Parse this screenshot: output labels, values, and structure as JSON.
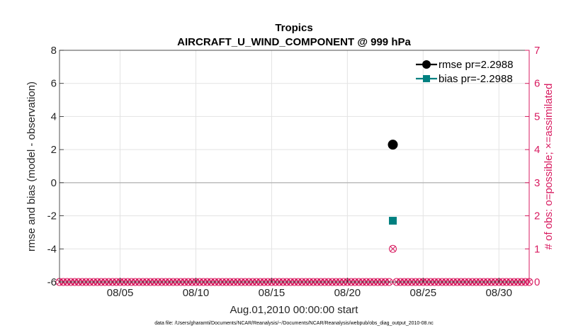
{
  "chart_data": {
    "type": "scatter",
    "title": "Tropics",
    "subtitle": "AIRCRAFT_U_WIND_COMPONENT @ 999 hPa",
    "xlabel": "Aug.01,2010 00:00:00 start",
    "ylabel": "rmse and bias (model - observation)",
    "y2label": "# of obs: o=possible; ×=assimilated",
    "footnote": "data file: /Users/gharamti/Documents/NCAR/Reanalysis/~/Documents/NCAR/Reanalysis/webpub/obs_diag_output_2010-08.nc",
    "xlim": [
      1.0,
      32.0
    ],
    "ylim": [
      -6,
      8
    ],
    "y2lim": [
      0,
      7
    ],
    "xticks": [
      5,
      10,
      15,
      20,
      25,
      30
    ],
    "xtick_labels": [
      "08/05",
      "08/10",
      "08/15",
      "08/20",
      "08/25",
      "08/30"
    ],
    "yticks": [
      -6,
      -4,
      -2,
      0,
      2,
      4,
      6,
      8
    ],
    "ytick_labels": [
      "-6",
      "-4",
      "-2",
      "0",
      "2",
      "4",
      "6",
      "8"
    ],
    "y2ticks": [
      0,
      1,
      2,
      3,
      4,
      5,
      6,
      7
    ],
    "y2tick_labels": [
      "0",
      "1",
      "2",
      "3",
      "4",
      "5",
      "6",
      "7"
    ],
    "grid": true,
    "zero_line": 0,
    "legend_position": "top-right",
    "series": [
      {
        "name": "rmse",
        "label": "rmse pr=2.2988",
        "color": "#000000",
        "marker": "circle",
        "x": [
          23.0
        ],
        "y": [
          2.2988
        ]
      },
      {
        "name": "bias",
        "label": "bias pr=-2.2988",
        "color": "#008080",
        "marker": "square",
        "x": [
          23.0
        ],
        "y": [
          -2.2988
        ]
      }
    ],
    "obs_count": {
      "color": "#d81b60",
      "x_start": 1.0,
      "x_end": 32.0,
      "step": 0.25,
      "possible_default": 0,
      "assimilated_default": 0,
      "nonzero": [
        {
          "x": 23.0,
          "possible": 1,
          "assimilated": 1
        }
      ]
    }
  }
}
